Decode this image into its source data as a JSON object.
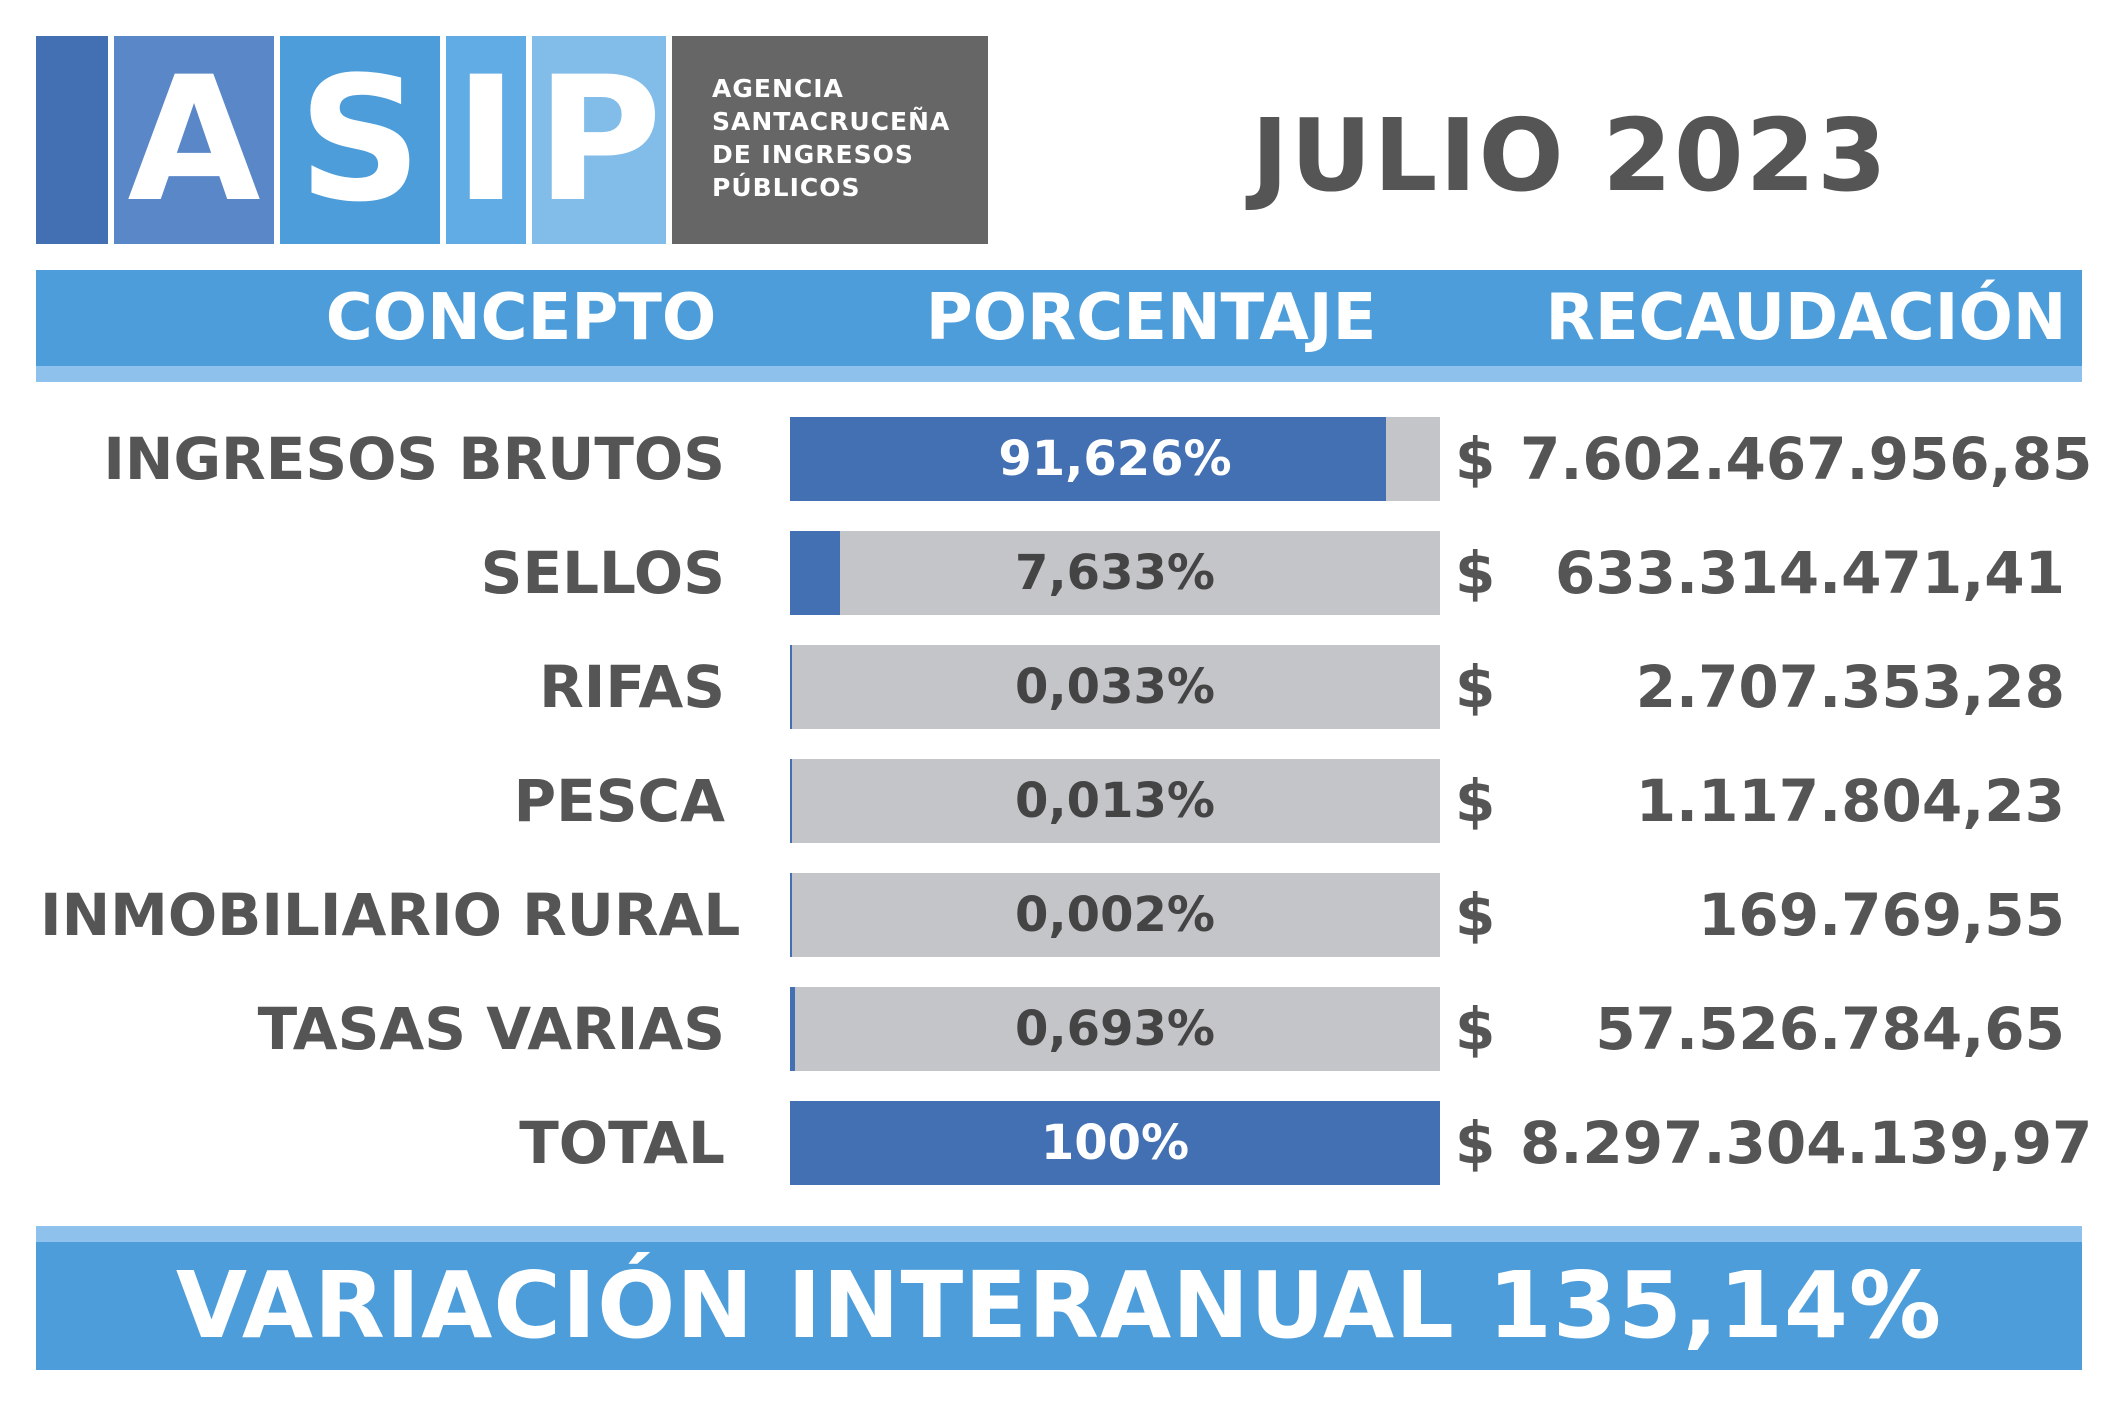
{
  "logo": {
    "letters": [
      "A",
      "S",
      "I",
      "P"
    ],
    "subtitle_lines": [
      "AGENCIA",
      "SANTACRUCEÑA",
      "DE INGRESOS",
      "PÚBLICOS"
    ],
    "colors": [
      "#436fb3",
      "#5a87c8",
      "#4d9dda",
      "#62ace6",
      "#82bdea"
    ]
  },
  "period": "JULIO 2023",
  "headers": {
    "concepto": "CONCEPTO",
    "porcentaje": "PORCENTAJE",
    "recaudacion": "RECAUDACIÓN"
  },
  "currency_symbol": "$",
  "chart_data": {
    "type": "bar",
    "title": "JULIO 2023",
    "categories": [
      "INGRESOS BRUTOS",
      "SELLOS",
      "RIFAS",
      "PESCA",
      "INMOBILIARIO RURAL",
      "TASAS VARIAS",
      "TOTAL"
    ],
    "values": [
      91.626,
      7.633,
      0.033,
      0.013,
      0.002,
      0.693,
      100
    ],
    "value_labels": [
      "91,626%",
      "7,633%",
      "0,033%",
      "0,013%",
      "0,002%",
      "0,693%",
      "100%"
    ],
    "amounts": [
      "7.602.467.956,85",
      "633.314.471,41",
      "2.707.353,28",
      "1.117.804,23",
      "169.769,55",
      "57.526.784,65",
      "8.297.304.139,97"
    ],
    "ylim": [
      0,
      100
    ],
    "colors": {
      "fill": "#436fb3",
      "track": "#c3c5c9"
    }
  },
  "footer": "VARIACIÓN INTERANUAL 135,14%"
}
